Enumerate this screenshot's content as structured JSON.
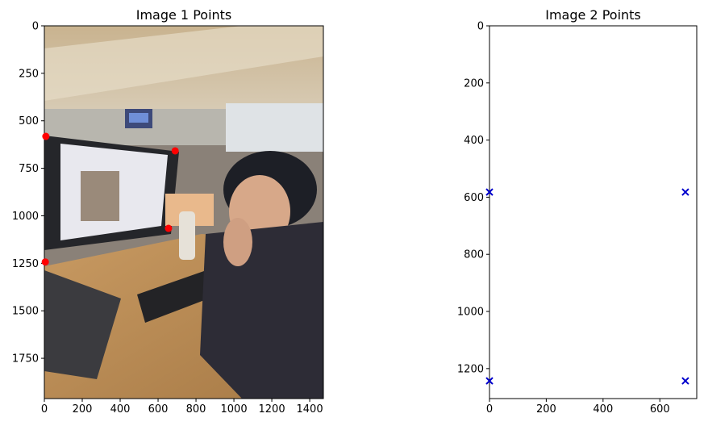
{
  "chart_data": [
    {
      "type": "scatter",
      "title": "Image 1 Points",
      "xlim": [
        0,
        1472
      ],
      "ylim": [
        1962,
        0
      ],
      "xticks": [
        0,
        200,
        400,
        600,
        800,
        1000,
        1200,
        1400
      ],
      "yticks": [
        0,
        250,
        500,
        750,
        1000,
        1250,
        1500,
        1750
      ],
      "background": "photo of a man at an office desk looking at a monitor",
      "marker": "circle",
      "color": "#ff0000",
      "points": [
        {
          "x": 8,
          "y": 582
        },
        {
          "x": 690,
          "y": 658
        },
        {
          "x": 655,
          "y": 1066
        },
        {
          "x": 5,
          "y": 1243
        }
      ]
    },
    {
      "type": "scatter",
      "title": "Image 2 Points",
      "xlim": [
        0,
        730
      ],
      "ylim": [
        1305,
        0
      ],
      "xticks": [
        0,
        200,
        400,
        600
      ],
      "yticks": [
        0,
        200,
        400,
        600,
        800,
        1000,
        1200
      ],
      "marker": "x",
      "color": "#0000cc",
      "points": [
        {
          "x": 0,
          "y": 582
        },
        {
          "x": 690,
          "y": 582
        },
        {
          "x": 0,
          "y": 1243
        },
        {
          "x": 690,
          "y": 1243
        }
      ]
    }
  ]
}
